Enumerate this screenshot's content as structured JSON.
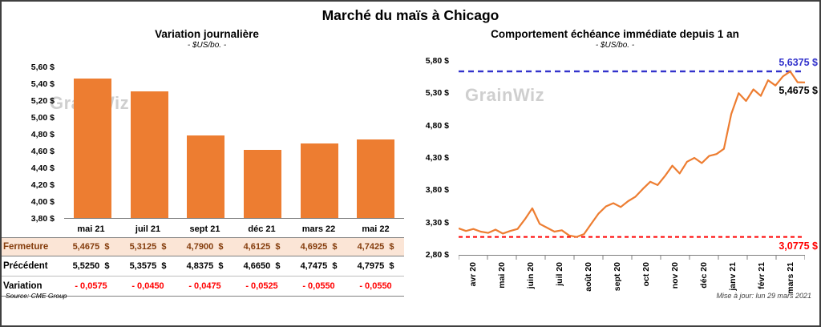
{
  "page": {
    "title": "Marché du maïs à Chicago",
    "source": "Source: CME Group",
    "updated": "Mise à jour: lun 29 mars 2021",
    "watermark": "GrainWiz"
  },
  "colors": {
    "bar": "#ED7D31",
    "line": "#ED7D31",
    "max_line": "#3333CC",
    "min_line": "#FF0000",
    "fermeture_bg": "#FBE5D6",
    "fermeture_text": "#843C0C",
    "variation_text": "#FF0000"
  },
  "chart_data": [
    {
      "type": "bar",
      "title": "Variation journalière",
      "subtitle": "- $US/bo. -",
      "categories": [
        "mai 21",
        "juil 21",
        "sept 21",
        "déc 21",
        "mars 22",
        "mai 22"
      ],
      "values": [
        5.4675,
        5.3125,
        4.79,
        4.6125,
        4.6925,
        4.7425
      ],
      "ylim": [
        3.8,
        5.6
      ],
      "ytick_step": 0.2,
      "ytick_labels": [
        "5,60 $",
        "5,40 $",
        "5,20 $",
        "5,00 $",
        "4,80 $",
        "4,60 $",
        "4,40 $",
        "4,20 $",
        "4,00 $",
        "3,80 $"
      ],
      "grid": false,
      "legend": false
    },
    {
      "type": "line",
      "title": "Comportement échéance immédiate depuis 1 an",
      "subtitle": "- $US/bo. -",
      "x_labels": [
        "avr 20",
        "mai 20",
        "juin 20",
        "juil 20",
        "août 20",
        "sept 20",
        "oct 20",
        "nov 20",
        "déc 20",
        "janv 21",
        "févr 21",
        "mars 21"
      ],
      "values": [
        3.21,
        3.17,
        3.2,
        3.16,
        3.14,
        3.19,
        3.13,
        3.17,
        3.2,
        3.35,
        3.52,
        3.28,
        3.22,
        3.16,
        3.18,
        3.1,
        3.0775,
        3.12,
        3.28,
        3.44,
        3.55,
        3.6,
        3.54,
        3.63,
        3.7,
        3.82,
        3.93,
        3.88,
        4.02,
        4.18,
        4.06,
        4.24,
        4.3,
        4.22,
        4.33,
        4.36,
        4.44,
        4.98,
        5.3,
        5.18,
        5.36,
        5.26,
        5.5,
        5.42,
        5.56,
        5.6375,
        5.47,
        5.4675
      ],
      "ylim": [
        2.8,
        5.8
      ],
      "ytick_step": 0.5,
      "ytick_labels": [
        "5,80 $",
        "5,30 $",
        "4,80 $",
        "4,30 $",
        "3,80 $",
        "3,30 $",
        "2,80 $"
      ],
      "max_value": 5.6375,
      "max_label": "5,6375 $",
      "last_value": 5.4675,
      "last_label": "5,4675 $",
      "min_value": 3.0775,
      "min_label": "3,0775 $",
      "grid": false,
      "legend": false
    }
  ],
  "table": {
    "rows": [
      {
        "label": "Fermeture",
        "values": [
          "5,4675  $",
          "5,3125  $",
          "4,7900  $",
          "4,6125  $",
          "4,6925  $",
          "4,7425  $"
        ]
      },
      {
        "label": "Précédent",
        "values": [
          "5,5250  $",
          "5,3575  $",
          "4,8375  $",
          "4,6650  $",
          "4,7475  $",
          "4,7975  $"
        ]
      },
      {
        "label": "Variation",
        "values": [
          "- 0,0575",
          "- 0,0450",
          "- 0,0475",
          "- 0,0525",
          "- 0,0550",
          "- 0,0550"
        ]
      }
    ]
  }
}
